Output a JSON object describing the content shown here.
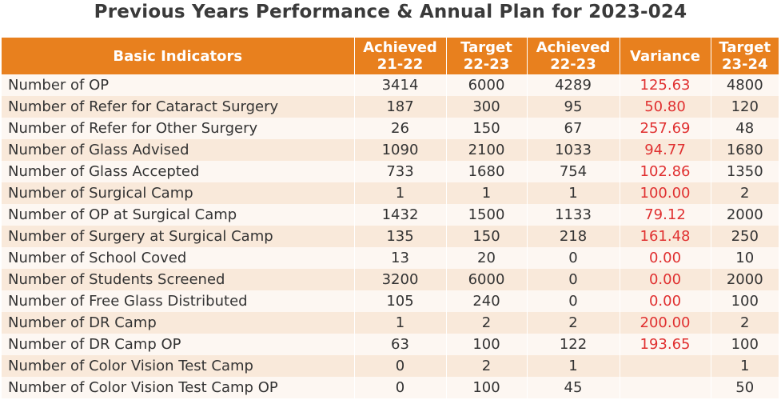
{
  "title": "Previous Years Performance & Annual Plan for 2023-024",
  "columns": [
    {
      "line1": "Basic Indicators",
      "line2": ""
    },
    {
      "line1": "Achieved",
      "line2": "21-22"
    },
    {
      "line1": "Target",
      "line2": "22-23"
    },
    {
      "line1": "Achieved",
      "line2": "22-23"
    },
    {
      "line1": "Variance",
      "line2": ""
    },
    {
      "line1": "Target",
      "line2": "23-24"
    }
  ],
  "rows": [
    {
      "indicator": "Number of OP",
      "achieved_21_22": "3414",
      "target_22_23": "6000",
      "achieved_22_23": "4289",
      "variance": "125.63",
      "target_23_24": "4800"
    },
    {
      "indicator": "Number of Refer for Cataract Surgery",
      "achieved_21_22": "187",
      "target_22_23": "300",
      "achieved_22_23": "95",
      "variance": "50.80",
      "target_23_24": "120"
    },
    {
      "indicator": "Number of Refer for Other Surgery",
      "achieved_21_22": "26",
      "target_22_23": "150",
      "achieved_22_23": "67",
      "variance": "257.69",
      "target_23_24": "48"
    },
    {
      "indicator": "Number of Glass Advised",
      "achieved_21_22": "1090",
      "target_22_23": "2100",
      "achieved_22_23": "1033",
      "variance": "94.77",
      "target_23_24": "1680"
    },
    {
      "indicator": "Number of Glass Accepted",
      "achieved_21_22": "733",
      "target_22_23": "1680",
      "achieved_22_23": "754",
      "variance": "102.86",
      "target_23_24": "1350"
    },
    {
      "indicator": "Number of Surgical  Camp",
      "achieved_21_22": "1",
      "target_22_23": "1",
      "achieved_22_23": "1",
      "variance": "100.00",
      "target_23_24": "2"
    },
    {
      "indicator": "Number of OP at Surgical Camp",
      "achieved_21_22": "1432",
      "target_22_23": "1500",
      "achieved_22_23": "1133",
      "variance": "79.12",
      "target_23_24": "2000"
    },
    {
      "indicator": "Number of Surgery at Surgical Camp",
      "achieved_21_22": "135",
      "target_22_23": "150",
      "achieved_22_23": "218",
      "variance": "161.48",
      "target_23_24": "250"
    },
    {
      "indicator": "Number of School Coved",
      "achieved_21_22": "13",
      "target_22_23": "20",
      "achieved_22_23": "0",
      "variance": "0.00",
      "target_23_24": "10"
    },
    {
      "indicator": "Number of Students Screened",
      "achieved_21_22": "3200",
      "target_22_23": "6000",
      "achieved_22_23": "0",
      "variance": "0.00",
      "target_23_24": "2000"
    },
    {
      "indicator": "Number of Free Glass Distributed",
      "achieved_21_22": "105",
      "target_22_23": "240",
      "achieved_22_23": "0",
      "variance": "0.00",
      "target_23_24": "100"
    },
    {
      "indicator": "Number of DR Camp",
      "achieved_21_22": "1",
      "target_22_23": "2",
      "achieved_22_23": "2",
      "variance": "200.00",
      "target_23_24": "2"
    },
    {
      "indicator": "Number of DR Camp OP",
      "achieved_21_22": "63",
      "target_22_23": "100",
      "achieved_22_23": "122",
      "variance": "193.65",
      "target_23_24": "100"
    },
    {
      "indicator": "Number of Color Vision Test Camp",
      "achieved_21_22": "0",
      "target_22_23": "2",
      "achieved_22_23": "1",
      "variance": "",
      "target_23_24": "1"
    },
    {
      "indicator": "Number of Color Vision Test Camp OP",
      "achieved_21_22": "0",
      "target_22_23": "100",
      "achieved_22_23": "45",
      "variance": "",
      "target_23_24": "50"
    }
  ],
  "colors": {
    "header_bg": "#e8801e",
    "header_text": "#ffffff",
    "row_light": "#fdf7f2",
    "row_shaded": "#f9e9da",
    "variance_text": "#e03030",
    "title_text": "#3a3a3a"
  }
}
